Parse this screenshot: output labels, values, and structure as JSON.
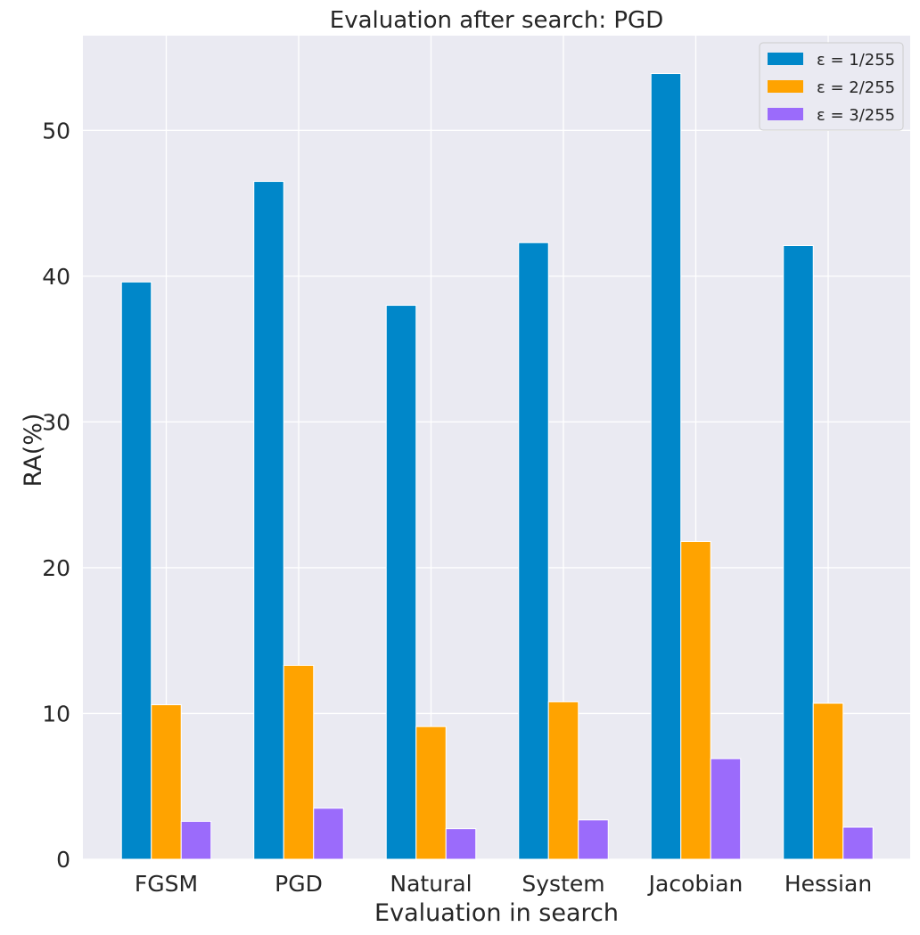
{
  "chart_data": {
    "type": "bar",
    "title": "Evaluation after search: PGD",
    "xlabel": "Evaluation in search",
    "ylabel": "RA(%)",
    "categories": [
      "FGSM",
      "PGD",
      "Natural",
      "System",
      "Jacobian",
      "Hessian"
    ],
    "ylim": [
      0,
      56.5
    ],
    "yticks": [
      0,
      10,
      20,
      30,
      40,
      50
    ],
    "grid": true,
    "legend_position": "top-right",
    "series": [
      {
        "name": "ε = 1/255",
        "color": "#0087c9",
        "values": [
          39.6,
          46.5,
          38.0,
          42.3,
          53.9,
          42.1
        ]
      },
      {
        "name": "ε = 2/255",
        "color": "#ffa300",
        "values": [
          10.6,
          13.3,
          9.1,
          10.8,
          21.8,
          10.7
        ]
      },
      {
        "name": "ε = 3/255",
        "color": "#9b6bfb",
        "values": [
          2.6,
          3.5,
          2.1,
          2.7,
          6.9,
          2.2
        ]
      }
    ]
  }
}
